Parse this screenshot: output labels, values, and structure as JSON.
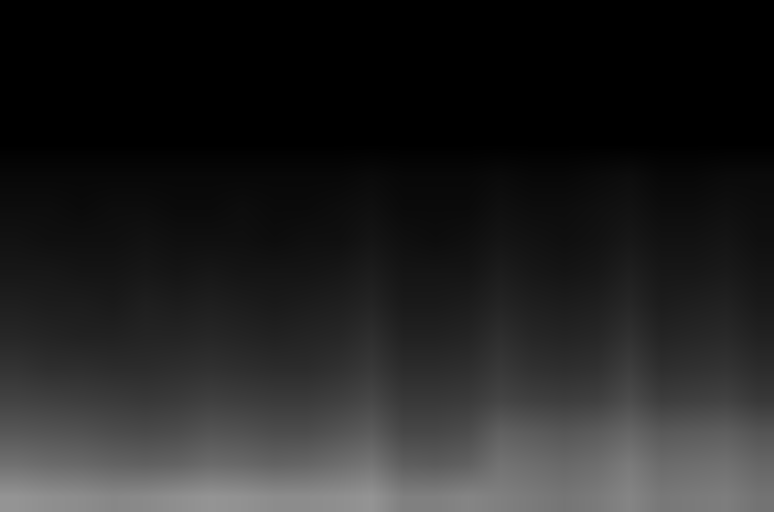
{
  "chart_data": {
    "type": "heatmap",
    "z": [
      [
        0,
        0,
        0,
        0,
        0,
        0,
        0,
        0,
        0,
        0,
        0,
        0,
        0,
        0,
        0,
        0,
        0,
        0,
        0,
        0,
        0,
        0,
        0,
        0
      ],
      [
        0,
        0,
        0,
        0,
        0,
        0,
        0,
        0,
        0,
        0,
        0,
        0,
        0,
        0,
        0,
        0,
        0,
        0,
        0,
        0,
        0,
        0,
        0,
        0
      ],
      [
        0,
        0,
        0,
        0,
        0,
        0,
        0,
        0,
        0,
        0,
        0,
        0,
        0,
        0,
        0,
        0,
        0,
        0,
        0,
        0,
        0,
        0,
        0,
        0
      ],
      [
        0,
        0,
        0,
        0,
        0,
        0,
        0,
        0,
        0,
        0,
        0,
        0,
        0,
        0,
        0,
        0,
        0,
        0,
        0,
        0,
        0,
        0,
        0,
        0
      ],
      [
        0,
        0,
        0,
        0,
        0,
        0,
        0,
        0,
        0,
        0,
        0,
        0,
        0,
        0,
        0,
        0,
        0,
        0,
        0,
        0,
        0,
        0,
        0,
        0
      ],
      [
        3,
        3,
        3,
        3,
        3,
        3,
        3,
        3,
        3,
        3,
        3,
        4,
        3,
        3,
        3,
        4,
        3,
        3,
        4,
        5,
        3,
        3,
        4,
        4
      ],
      [
        5,
        5,
        4,
        5,
        5,
        4,
        4,
        5,
        4,
        4,
        5,
        6,
        4,
        4,
        4,
        6,
        5,
        5,
        6,
        7,
        5,
        5,
        6,
        5
      ],
      [
        7,
        6,
        6,
        6,
        7,
        6,
        6,
        6,
        5,
        6,
        6,
        8,
        6,
        5,
        6,
        8,
        7,
        6,
        7,
        9,
        7,
        7,
        8,
        6
      ],
      [
        9,
        9,
        8,
        8,
        9,
        8,
        9,
        8,
        8,
        8,
        9,
        11,
        8,
        8,
        8,
        11,
        9,
        8,
        9,
        12,
        9,
        9,
        10,
        8
      ],
      [
        12,
        11,
        11,
        10,
        12,
        11,
        12,
        11,
        10,
        11,
        12,
        14,
        10,
        10,
        11,
        14,
        12,
        11,
        12,
        15,
        11,
        12,
        13,
        10
      ],
      [
        15,
        14,
        13,
        13,
        14,
        14,
        15,
        14,
        13,
        14,
        15,
        18,
        13,
        13,
        14,
        18,
        15,
        14,
        15,
        19,
        14,
        15,
        16,
        13
      ],
      [
        20,
        18,
        18,
        17,
        17,
        18,
        19,
        18,
        17,
        17,
        19,
        22,
        17,
        17,
        18,
        22,
        19,
        18,
        19,
        24,
        18,
        19,
        20,
        17
      ],
      [
        26,
        25,
        24,
        23,
        22,
        23,
        25,
        24,
        23,
        23,
        25,
        28,
        22,
        22,
        23,
        27,
        25,
        24,
        25,
        30,
        24,
        25,
        26,
        22
      ],
      [
        34,
        33,
        32,
        30,
        29,
        30,
        33,
        32,
        30,
        30,
        33,
        36,
        28,
        28,
        30,
        38,
        36,
        34,
        36,
        40,
        35,
        36,
        37,
        33
      ],
      [
        44,
        42,
        41,
        39,
        38,
        39,
        42,
        41,
        39,
        40,
        43,
        46,
        37,
        36,
        38,
        45,
        43,
        41,
        43,
        48,
        42,
        43,
        44,
        40
      ],
      [
        58,
        56,
        55,
        53,
        54,
        56,
        58,
        57,
        55,
        55,
        56,
        58,
        50,
        50,
        52,
        50,
        48,
        46,
        48,
        52,
        47,
        48,
        49,
        45
      ]
    ],
    "zlim": [
      0,
      100
    ],
    "colors": [
      "#000000",
      "#ffffff"
    ],
    "tick_labels": false,
    "grid": false
  }
}
